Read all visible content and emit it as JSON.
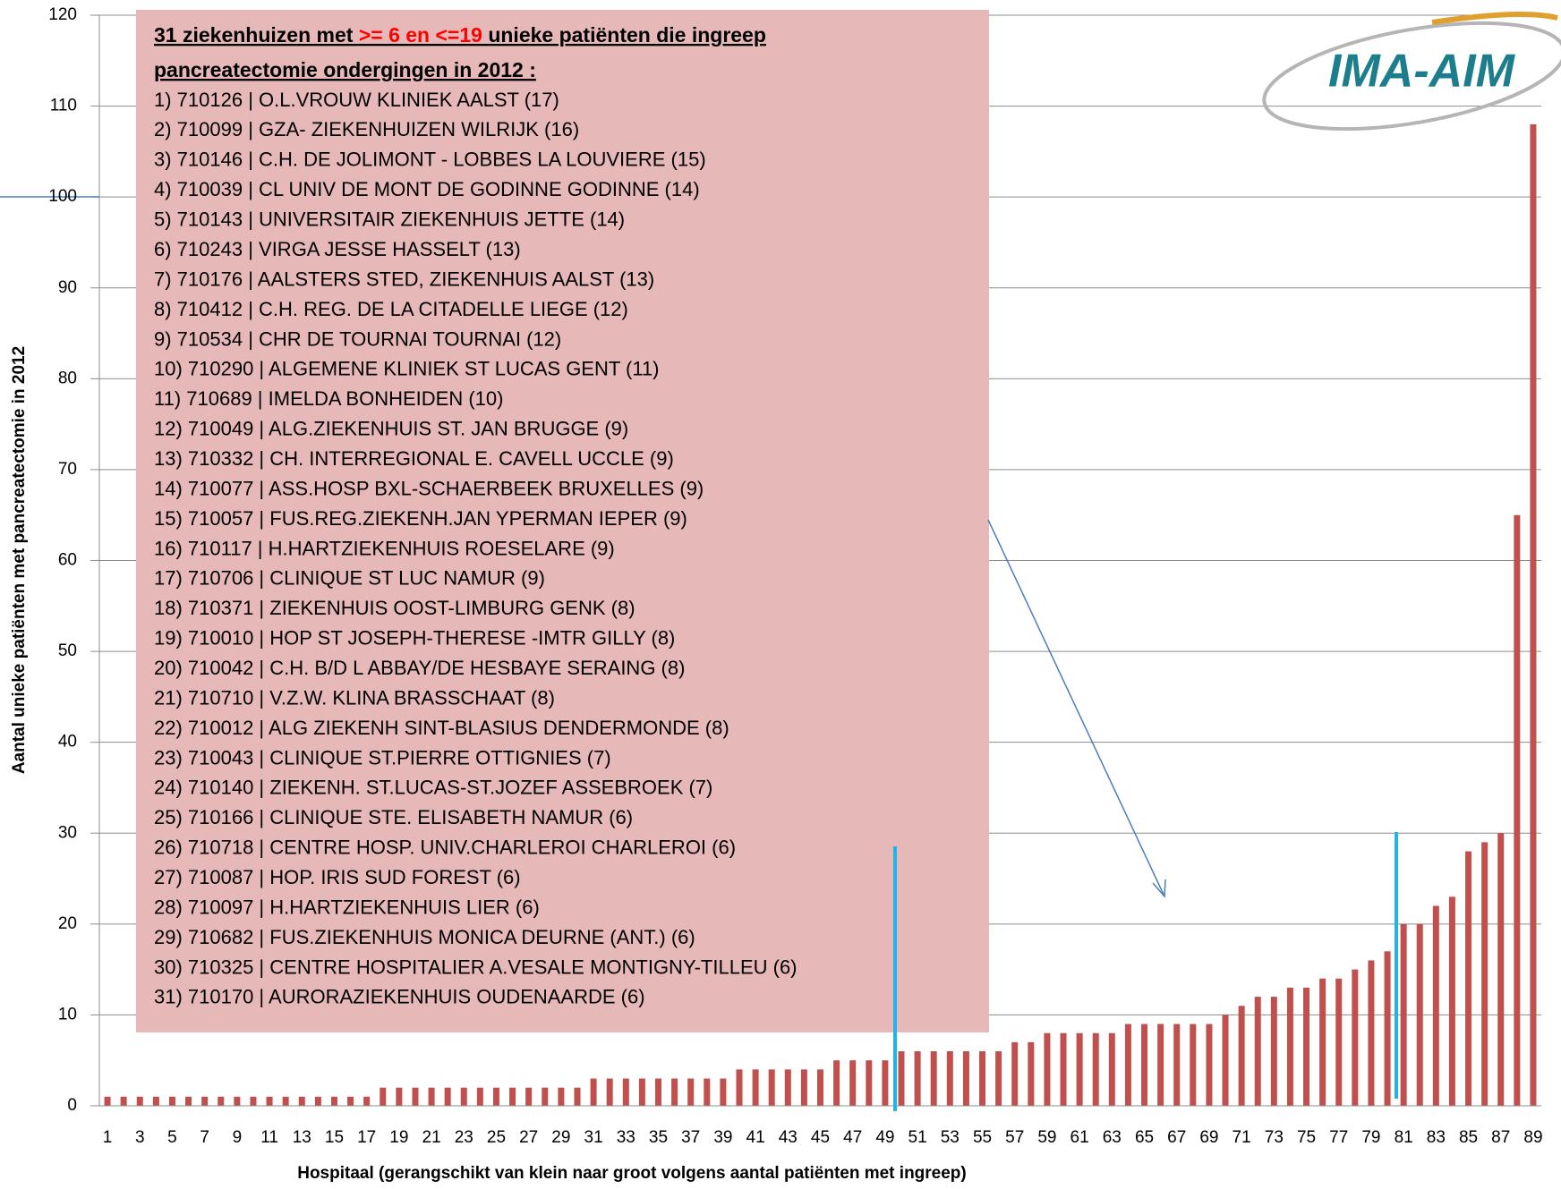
{
  "chart_data": {
    "type": "bar",
    "x_label": "Hospitaal (gerangschikt van klein naar groot volgens aantal patiënten met ingreep)",
    "y_label": "Aantal unieke patiënten met pancreatectomie in 2012",
    "logo": "IMA-AIM",
    "color": "#c0504d",
    "grid": true,
    "ylim": [
      0,
      120
    ],
    "yticks": [
      0,
      10,
      20,
      30,
      40,
      50,
      60,
      70,
      80,
      90,
      100,
      110,
      120
    ],
    "categories": [
      "1",
      null,
      "3",
      null,
      "5",
      null,
      "7",
      null,
      "9",
      null,
      "11",
      null,
      "13",
      null,
      "15",
      null,
      "17",
      null,
      "19",
      null,
      "21",
      null,
      "23",
      null,
      "25",
      null,
      "27",
      null,
      "29",
      null,
      "31",
      null,
      "33",
      null,
      "35",
      null,
      "37",
      null,
      "39",
      null,
      "41",
      null,
      "43",
      null,
      "45",
      null,
      "47",
      null,
      "49",
      null,
      "51",
      null,
      "53",
      null,
      "55",
      null,
      "57",
      null,
      "59",
      null,
      "61",
      null,
      "63",
      null,
      "65",
      null,
      "67",
      null,
      "69",
      null,
      "71",
      null,
      "73",
      null,
      "75",
      null,
      "77",
      null,
      "79",
      null,
      "81",
      null,
      "83",
      null,
      "85",
      null,
      "87",
      null,
      "89"
    ],
    "values": [
      1,
      1,
      1,
      1,
      1,
      1,
      1,
      1,
      1,
      1,
      1,
      1,
      1,
      1,
      1,
      1,
      1,
      2,
      2,
      2,
      2,
      2,
      2,
      2,
      2,
      2,
      2,
      2,
      2,
      2,
      3,
      3,
      3,
      3,
      3,
      3,
      3,
      3,
      3,
      4,
      4,
      4,
      4,
      4,
      4,
      5,
      5,
      5,
      5,
      6,
      6,
      6,
      6,
      6,
      6,
      6,
      7,
      7,
      8,
      8,
      8,
      8,
      8,
      9,
      9,
      9,
      9,
      9,
      9,
      10,
      11,
      12,
      12,
      13,
      13,
      14,
      14,
      15,
      16,
      17,
      20,
      20,
      22,
      23,
      28,
      29,
      30,
      65,
      108
    ],
    "box": {
      "title_parts": [
        {
          "text": "31 ziekenhuizen met ",
          "color": "#000000"
        },
        {
          "text": ">= 6 en <=19 ",
          "color": "#ff0000"
        },
        {
          "text": "unieke patiënten die ingreep",
          "color": "#000000"
        }
      ],
      "title_line2": "pancreatectomie ondergingen in 2012 :",
      "items": [
        "1) 710126 | O.L.VROUW KLINIEK AALST (17)",
        "2) 710099 | GZA- ZIEKENHUIZEN WILRIJK (16)",
        "3) 710146 | C.H. DE JOLIMONT - LOBBES LA LOUVIERE (15)",
        "4) 710039 | CL UNIV DE MONT DE GODINNE GODINNE (14)",
        "5) 710143 | UNIVERSITAIR ZIEKENHUIS JETTE (14)",
        "6) 710243 | VIRGA JESSE HASSELT (13)",
        "7) 710176 | AALSTERS STED, ZIEKENHUIS AALST (13)",
        "8) 710412 | C.H. REG. DE LA CITADELLE LIEGE (12)",
        "9) 710534 | CHR DE TOURNAI TOURNAI (12)",
        "10) 710290 | ALGEMENE KLINIEK ST LUCAS GENT (11)",
        "11) 710689 | IMELDA BONHEIDEN (10)",
        "12) 710049 | ALG.ZIEKENHUIS ST. JAN BRUGGE (9)",
        "13) 710332 | CH. INTERREGIONAL E. CAVELL UCCLE (9)",
        "14) 710077 | ASS.HOSP BXL-SCHAERBEEK BRUXELLES (9)",
        "15) 710057 | FUS.REG.ZIEKENH.JAN YPERMAN IEPER (9)",
        "16) 710117 | H.HARTZIEKENHUIS ROESELARE (9)",
        "17) 710706 | CLINIQUE ST LUC NAMUR (9)",
        "18) 710371 | ZIEKENHUIS OOST-LIMBURG GENK (8)",
        "19) 710010 | HOP ST JOSEPH-THERESE -IMTR GILLY (8)",
        "20) 710042 | C.H. B/D L ABBAY/DE HESBAYE SERAING (8)",
        "21) 710710 | V.Z.W. KLINA BRASSCHAAT (8)",
        "22) 710012 | ALG ZIEKENH SINT-BLASIUS DENDERMONDE (8)",
        "23) 710043 | CLINIQUE ST.PIERRE OTTIGNIES (7)",
        "24) 710140 | ZIEKENH. ST.LUCAS-ST.JOZEF ASSEBROEK (7)",
        "25) 710166 | CLINIQUE STE. ELISABETH NAMUR (6)",
        "26) 710718 | CENTRE HOSP. UNIV.CHARLEROI CHARLEROI (6)",
        "27) 710087 | HOP. IRIS SUD FOREST (6)",
        "28) 710097 | H.HARTZIEKENHUIS LIER (6)",
        "29) 710682 | FUS.ZIEKENHUIS MONICA DEURNE (ANT.) (6)",
        "30) 710325 | CENTRE HOSPITALIER A.VESALE MONTIGNY-TILLEU (6)",
        "31) 710170 | AURORAZIEKENHUIS OUDENAARDE (6)"
      ]
    }
  }
}
